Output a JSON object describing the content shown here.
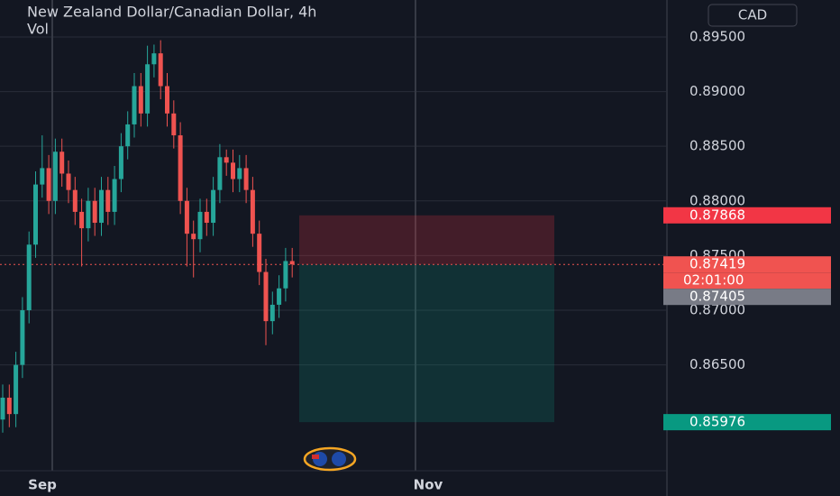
{
  "header": {
    "title": "New Zealand Dollar/Canadian Dollar, 4h",
    "indicator": "Vol",
    "currency": "CAD"
  },
  "chart_data": {
    "type": "candlestick",
    "up_color": "#26a69a",
    "down_color": "#ef5350",
    "open": [
      0.86,
      0.862,
      0.8605,
      0.865,
      0.87,
      0.876,
      0.8815,
      0.883,
      0.88,
      0.8845,
      0.8825,
      0.881,
      0.879,
      0.8775,
      0.88,
      0.878,
      0.881,
      0.879,
      0.882,
      0.885,
      0.887,
      0.8905,
      0.888,
      0.8925,
      0.8935,
      0.8905,
      0.888,
      0.886,
      0.88,
      0.877,
      0.8765,
      0.879,
      0.878,
      0.881,
      0.884,
      0.8835,
      0.882,
      0.883,
      0.881,
      0.877,
      0.8735,
      0.869,
      0.8705,
      0.872,
      0.8745
    ],
    "high": [
      0.8632,
      0.8632,
      0.8662,
      0.8712,
      0.8772,
      0.8827,
      0.886,
      0.8842,
      0.8857,
      0.8857,
      0.8837,
      0.8822,
      0.8802,
      0.8812,
      0.8812,
      0.8822,
      0.8822,
      0.8832,
      0.8862,
      0.8882,
      0.8917,
      0.8917,
      0.8942,
      0.8943,
      0.8947,
      0.8917,
      0.8892,
      0.8872,
      0.8812,
      0.8782,
      0.8802,
      0.8802,
      0.8822,
      0.8852,
      0.8847,
      0.8847,
      0.8842,
      0.8842,
      0.8822,
      0.8782,
      0.8747,
      0.8717,
      0.8732,
      0.8757,
      0.8757
    ],
    "low": [
      0.8588,
      0.8593,
      0.8593,
      0.8638,
      0.8688,
      0.8748,
      0.8803,
      0.8788,
      0.8788,
      0.8813,
      0.8798,
      0.8778,
      0.874,
      0.8763,
      0.8768,
      0.8768,
      0.8778,
      0.8778,
      0.8808,
      0.8838,
      0.8858,
      0.8868,
      0.8868,
      0.8913,
      0.8893,
      0.8868,
      0.8848,
      0.8788,
      0.874,
      0.873,
      0.8753,
      0.8768,
      0.8768,
      0.8798,
      0.8823,
      0.8808,
      0.8808,
      0.8798,
      0.8758,
      0.8723,
      0.8668,
      0.8678,
      0.8693,
      0.8708,
      0.873
    ],
    "close": [
      0.862,
      0.8605,
      0.865,
      0.87,
      0.876,
      0.8815,
      0.883,
      0.88,
      0.8845,
      0.8825,
      0.881,
      0.879,
      0.8775,
      0.88,
      0.878,
      0.881,
      0.879,
      0.882,
      0.885,
      0.887,
      0.8905,
      0.888,
      0.8925,
      0.8935,
      0.8905,
      0.888,
      0.886,
      0.88,
      0.877,
      0.8765,
      0.879,
      0.878,
      0.881,
      0.884,
      0.8835,
      0.882,
      0.883,
      0.881,
      0.877,
      0.8735,
      0.869,
      0.8705,
      0.872,
      0.8745,
      0.8742
    ],
    "ylim": [
      0.85548,
      0.89838
    ],
    "yticks": [
      {
        "value": 0.895,
        "label": "0.89500"
      },
      {
        "value": 0.89,
        "label": "0.89000"
      },
      {
        "value": 0.885,
        "label": "0.88500"
      },
      {
        "value": 0.88,
        "label": "0.88000"
      },
      {
        "value": 0.875,
        "label": "0.87500"
      },
      {
        "value": 0.87,
        "label": "0.87000"
      },
      {
        "value": 0.865,
        "label": "0.86500"
      }
    ],
    "grid": true,
    "x_labels": [
      "Sep",
      "Nov"
    ],
    "price_labels": [
      {
        "value": 0.87868,
        "color": "#f23645"
      },
      {
        "value": 0.87419,
        "color": "#f05350"
      },
      {
        "label": "02:01:00",
        "color": "#f05350"
      },
      {
        "value": 0.87405,
        "color": "#787b86"
      },
      {
        "value": 0.85976,
        "color": "#089981"
      }
    ]
  }
}
